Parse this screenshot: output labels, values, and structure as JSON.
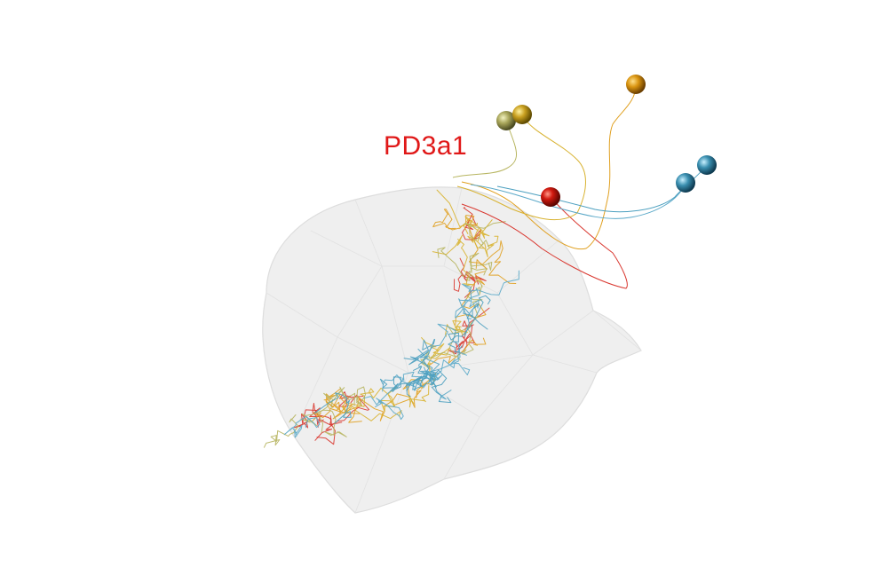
{
  "label": {
    "text": "PD3a1",
    "color": "#e01818"
  },
  "neuropil": {
    "fill": "#f0f0f0",
    "stroke": "#dcdcdc"
  },
  "neurons": [
    {
      "name": "red",
      "color": "#d9372f"
    },
    {
      "name": "orange",
      "color": "#e0a020"
    },
    {
      "name": "gold",
      "color": "#d8b230"
    },
    {
      "name": "olive",
      "color": "#b7b560"
    },
    {
      "name": "cyan-1",
      "color": "#5aa8c8"
    },
    {
      "name": "cyan-2",
      "color": "#4b9fbf"
    }
  ]
}
